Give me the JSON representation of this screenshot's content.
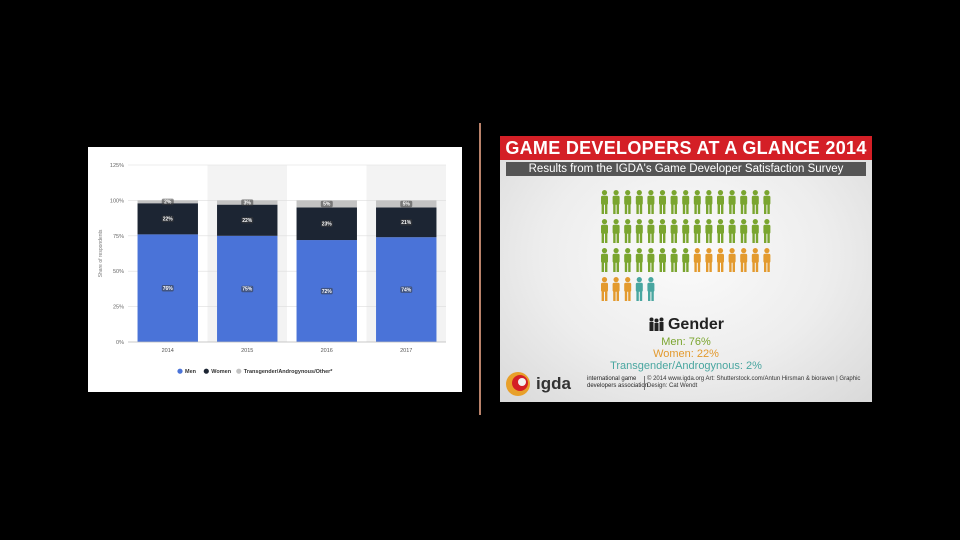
{
  "chart_data": {
    "type": "bar",
    "stacked": true,
    "categories": [
      "2014",
      "2015",
      "2016",
      "2017"
    ],
    "series": [
      {
        "name": "Men",
        "values": [
          76,
          75,
          72,
          74
        ],
        "labels": [
          "76%",
          "75%",
          "72%",
          "74%"
        ],
        "color": "#4a73d8"
      },
      {
        "name": "Women",
        "values": [
          22,
          22,
          23,
          21
        ],
        "labels": [
          "22%",
          "22%",
          "23%",
          "21%"
        ],
        "color": "#1c2533"
      },
      {
        "name": "Transgender/Androgynous/Other*",
        "values": [
          2,
          3,
          5,
          5
        ],
        "labels": [
          "2%",
          "3%",
          "5%",
          "5%"
        ],
        "color": "#c3c3c3"
      }
    ],
    "ylabel": "Share of respondents",
    "ylim": [
      0,
      125
    ],
    "yticks": [
      "0%",
      "25%",
      "50%",
      "75%",
      "100%",
      "125%"
    ],
    "grid": true,
    "legend_position": "bottom"
  },
  "infographic": {
    "title": "GAME DEVELOPERS AT A GLANCE 2014",
    "subtitle": "Results from the IGDA's Game Developer Satisfaction Survey",
    "gender_title": "Gender",
    "stats": [
      {
        "label": "Men: 76%",
        "color": "#7aa52f",
        "figures": 38
      },
      {
        "label": "Women: 22%",
        "color": "#e39a2e",
        "figures": 10
      },
      {
        "label": "Transgender/Androgynous: 2%",
        "color": "#49a6a0",
        "figures": 2
      }
    ],
    "logo_text": "igda",
    "logo_tagline": [
      "international game",
      "developers association"
    ],
    "credit": "© 2014 www.igda.org Art: Shutterstock.com/Antun Hirsman & bioraven | Graphic Design: Cat Wendt"
  }
}
